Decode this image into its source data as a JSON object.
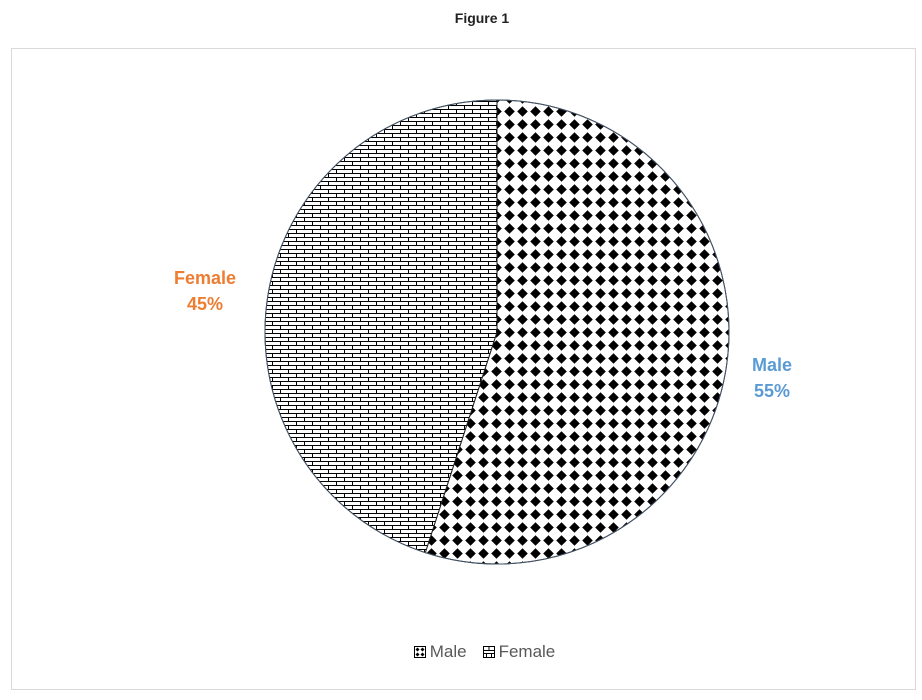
{
  "page": {
    "title": "Figure 1"
  },
  "chart_data": {
    "type": "pie",
    "title": "",
    "categories": [
      "Male",
      "Female"
    ],
    "values": [
      55,
      45
    ],
    "data_labels": [
      {
        "name": "Male",
        "value": "55%"
      },
      {
        "name": "Female",
        "value": "45%"
      }
    ],
    "label_colors": {
      "Male": "#5b9bd5",
      "Female": "#ed7d31"
    },
    "slice_patterns": {
      "Male": "diamond-dots",
      "Female": "brick"
    },
    "start_angle_deg": 0,
    "direction": "clockwise",
    "legend": {
      "position": "bottom",
      "entries": [
        "Male",
        "Female"
      ]
    }
  }
}
